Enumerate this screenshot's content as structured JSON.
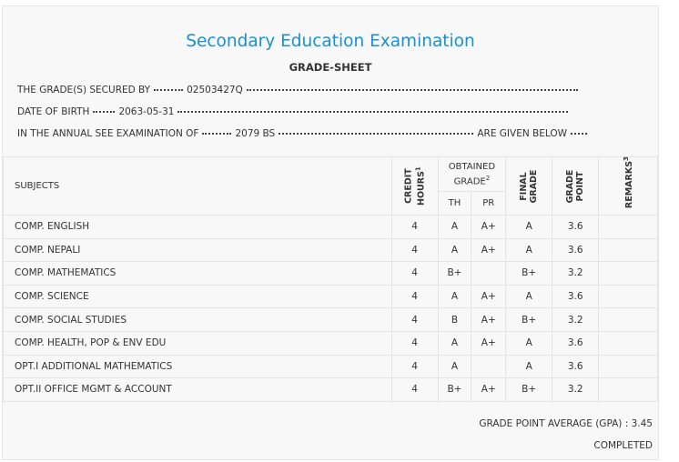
{
  "header": {
    "title": "Secondary Education Examination",
    "subtitle": "GRADE-SHEET"
  },
  "info": [
    {
      "label": "THE GRADE(S) SECURED BY",
      "value": "02503427Q"
    },
    {
      "label": "DATE OF BIRTH",
      "value": "2063-05-31"
    },
    {
      "label": "IN THE ANNUAL SEE EXAMINATION OF",
      "value": "2079 BS",
      "suffix": "ARE GIVEN BELOW"
    }
  ],
  "table": {
    "columns": {
      "subjects": "SUBJECTS",
      "credit_hours": {
        "text": "CREDIT HOURS",
        "note": "1"
      },
      "obtained_grade": {
        "text": "OBTAINED GRADE",
        "note": "2"
      },
      "th": "TH",
      "pr": "PR",
      "final_grade": "FINAL GRADE",
      "grade_point": "GRADE POINT",
      "remarks": {
        "text": "REMARKS",
        "note": "3"
      }
    },
    "rows": [
      {
        "subject": "COMP. ENGLISH",
        "credit_hours": 4,
        "th": "A",
        "pr": "A+",
        "final_grade": "A",
        "grade_point": 3.6
      },
      {
        "subject": "COMP. NEPALI",
        "credit_hours": 4,
        "th": "A",
        "pr": "A+",
        "final_grade": "A",
        "grade_point": 3.6
      },
      {
        "subject": "COMP. MATHEMATICS",
        "credit_hours": 4,
        "th": "B+",
        "pr": null,
        "final_grade": "B+",
        "grade_point": 3.2
      },
      {
        "subject": "COMP. SCIENCE",
        "credit_hours": 4,
        "th": "A",
        "pr": "A+",
        "final_grade": "A",
        "grade_point": 3.6
      },
      {
        "subject": "COMP. SOCIAL STUDIES",
        "credit_hours": 4,
        "th": "B",
        "pr": "A+",
        "final_grade": "B+",
        "grade_point": 3.2
      },
      {
        "subject": "COMP. HEALTH, POP & ENV EDU",
        "credit_hours": 4,
        "th": "A",
        "pr": "A+",
        "final_grade": "A",
        "grade_point": 3.6
      },
      {
        "subject": "OPT.I ADDITIONAL MATHEMATICS",
        "credit_hours": 4,
        "th": "A",
        "pr": null,
        "final_grade": "A",
        "grade_point": 3.6
      },
      {
        "subject": "OPT.II OFFICE MGMT & ACCOUNT",
        "credit_hours": 4,
        "th": "B+",
        "pr": "A+",
        "final_grade": "B+",
        "grade_point": 3.2
      }
    ]
  },
  "footer": {
    "gpa_label": "GRADE POINT AVERAGE (GPA) :",
    "gpa": 3.45,
    "status": "COMPLETED"
  }
}
